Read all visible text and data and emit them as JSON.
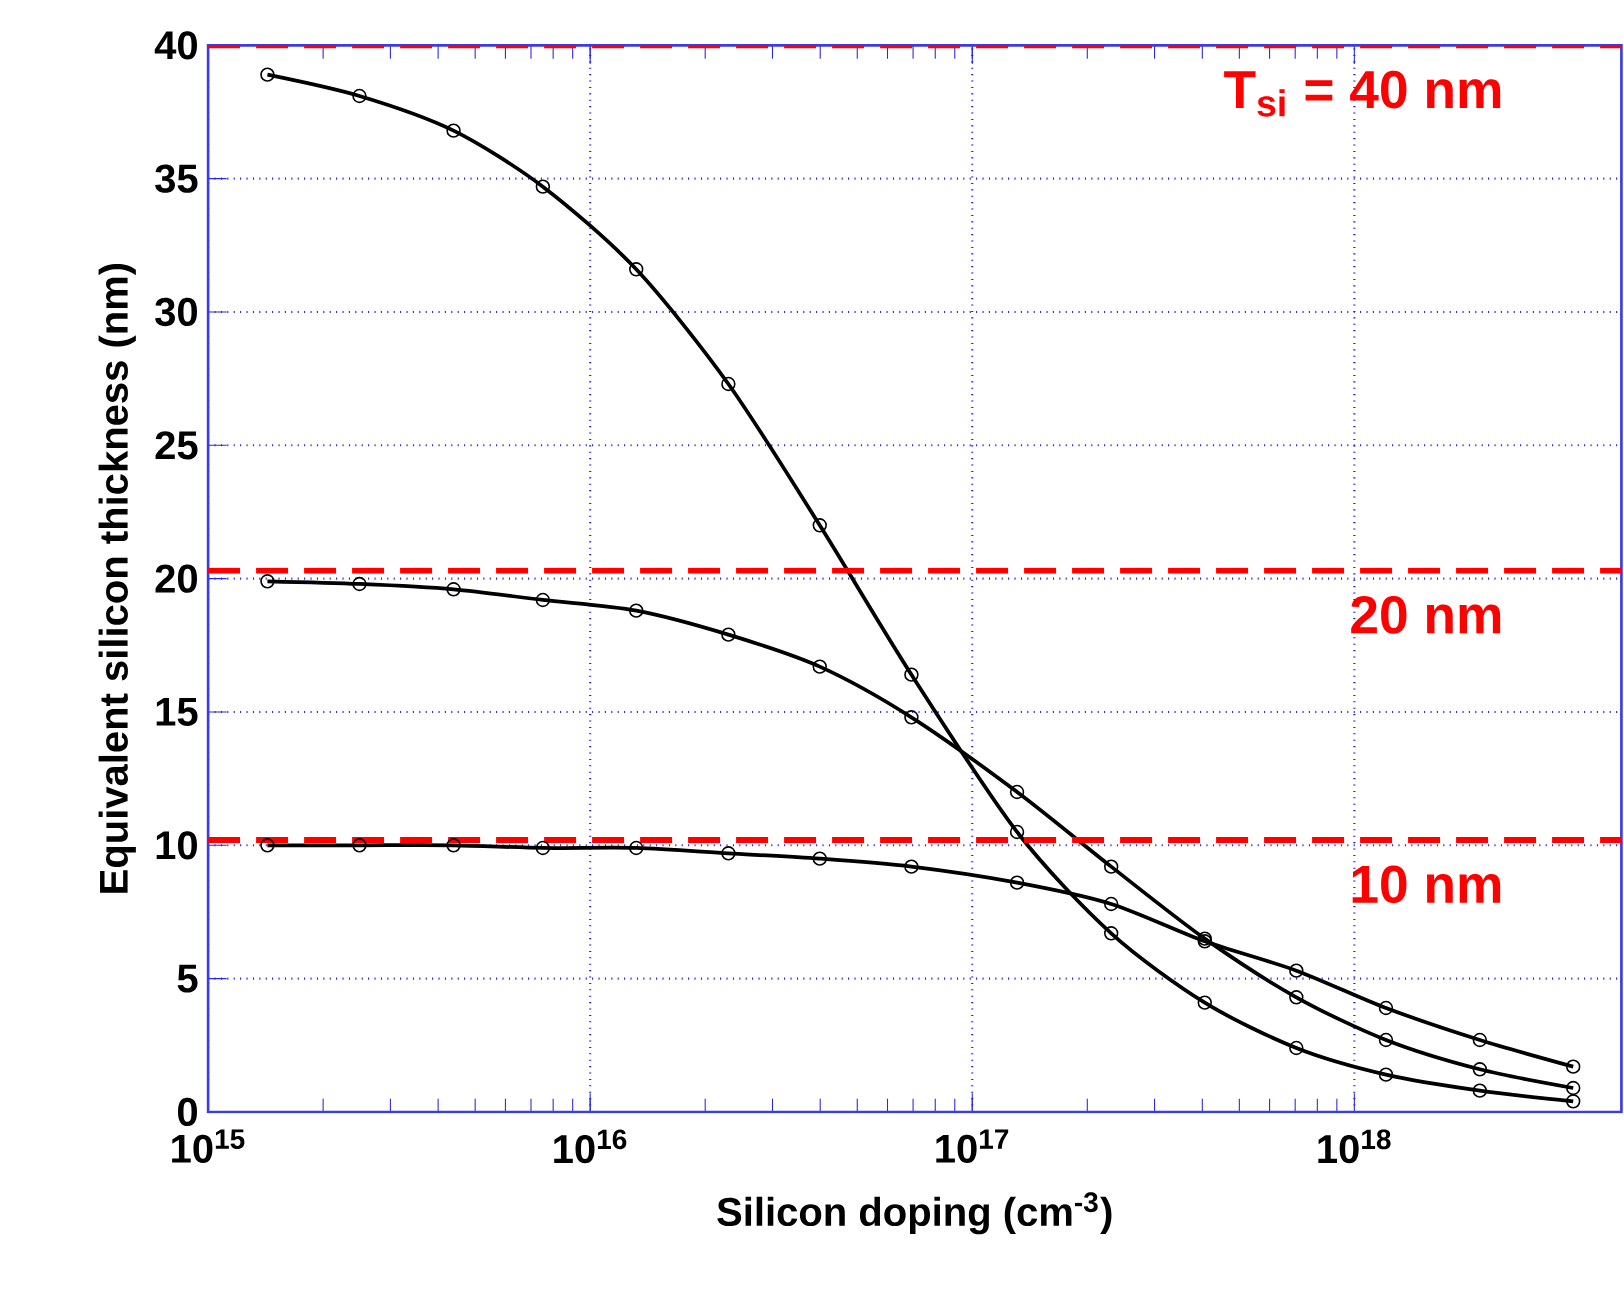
{
  "chart_data": {
    "type": "line",
    "xlabel": "Silicon doping (cm$^{-3}$)",
    "ylabel": "Equivalent silicon thickness (nm)",
    "x": [
      1430000000000000.0,
      2490000000000000.0,
      4390000000000000.0,
      7520000000000000.0,
      1.32e+16,
      2.3e+16,
      3.99e+16,
      6.93e+16,
      1.31e+17,
      2.31e+17,
      4.06e+17,
      7.05e+17,
      1.21e+18,
      2.13e+18,
      3.74e+18
    ],
    "series": [
      {
        "color": "#000000",
        "values": [
          38.9,
          38.1,
          36.8,
          34.7,
          31.6,
          27.3,
          22.0,
          16.4,
          10.5,
          6.7,
          4.1,
          2.4,
          1.4,
          0.8,
          0.4
        ]
      },
      {
        "color": "#000000",
        "values": [
          19.9,
          19.8,
          19.6,
          19.2,
          18.8,
          17.9,
          16.7,
          14.8,
          12.0,
          9.2,
          6.5,
          4.3,
          2.7,
          1.6,
          0.9
        ]
      },
      {
        "color": "#000000",
        "values": [
          10.0,
          10.0,
          10.0,
          9.9,
          9.9,
          9.7,
          9.5,
          9.2,
          8.6,
          7.8,
          6.4,
          5.3,
          3.9,
          2.7,
          1.7
        ]
      }
    ],
    "log": "x",
    "xlim": [
      1000000000000000.0,
      5e+18
    ],
    "xticks": [
      {
        "value": 1000000000000000.0,
        "label": "10$^{15}$"
      },
      {
        "value": 1e+16,
        "label": "10$^{16}$"
      },
      {
        "value": 1e+17,
        "label": "10$^{17}$"
      },
      {
        "value": 1e+18,
        "label": "10$^{18}$"
      }
    ],
    "ylim": [
      0,
      40
    ],
    "yticks": [
      0,
      5,
      10,
      15,
      20,
      25,
      30,
      35,
      40
    ],
    "grid": true,
    "marker": "circle",
    "line_style": "solid",
    "ref_lines": [
      {
        "axis": "y",
        "value": 40,
        "label": "T$_{si}$ = 40 nm",
        "color": "#ff0000",
        "line_style": "dashed"
      },
      {
        "axis": "y",
        "value": 20.3,
        "label": "20 nm",
        "color": "#ff0000",
        "line_style": "dashed"
      },
      {
        "axis": "y",
        "value": 10.2,
        "label": "10 nm",
        "color": "#ff0000",
        "line_style": "dashed"
      }
    ]
  }
}
